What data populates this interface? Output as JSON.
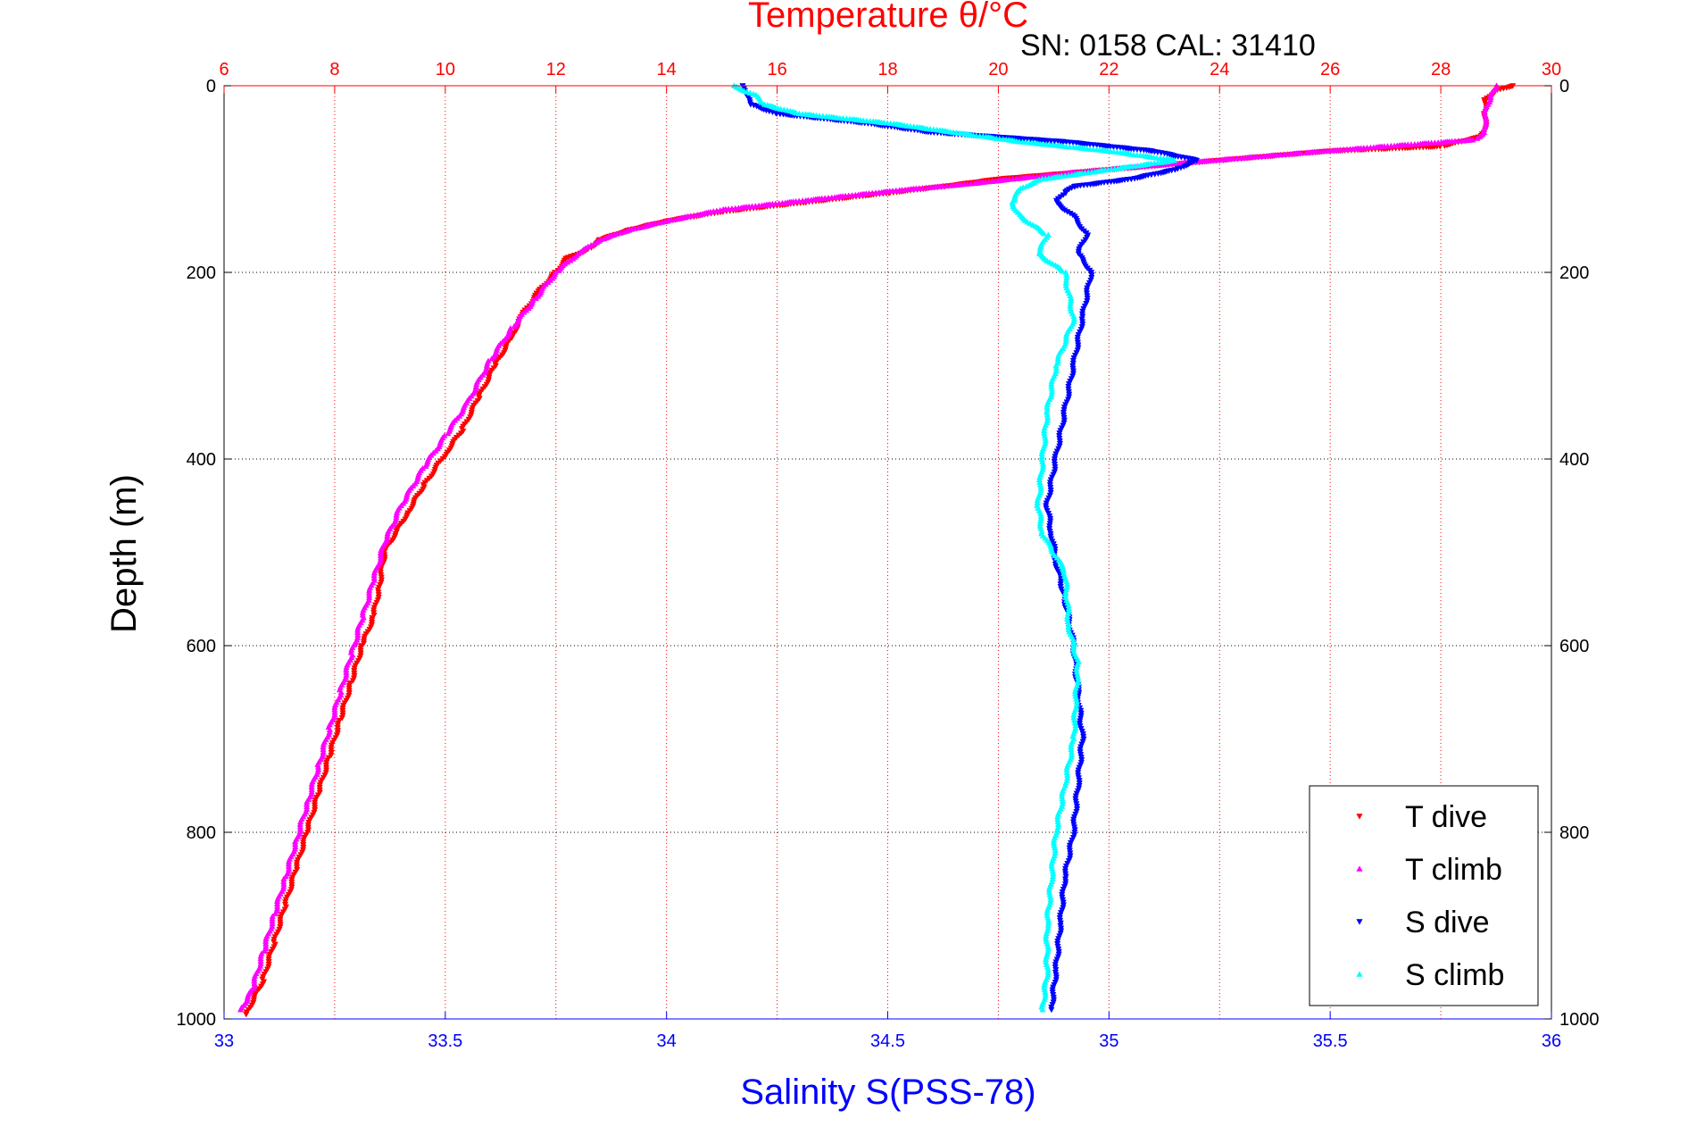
{
  "chart_data": {
    "type": "scatter",
    "title": "Temperature θ/°C",
    "annotation": "SN: 0158  CAL: 31410",
    "xlabel_top": "Temperature θ/°C",
    "xlabel_bottom": "Salinity S(PSS-78)",
    "ylabel": "Depth (m)",
    "temp_axis": {
      "range": [
        6,
        30
      ],
      "ticks": [
        "6",
        "8",
        "10",
        "12",
        "14",
        "16",
        "18",
        "20",
        "22",
        "24",
        "26",
        "28",
        "30"
      ],
      "color": "#ff0000"
    },
    "sal_axis": {
      "range": [
        33,
        36
      ],
      "ticks": [
        "33",
        "33.5",
        "34",
        "34.5",
        "35",
        "35.5",
        "36"
      ],
      "color": "#0000ff"
    },
    "depth_axis": {
      "range": [
        0,
        1000
      ],
      "reversed": true,
      "ticks": [
        "0",
        "200",
        "400",
        "600",
        "800",
        "1000"
      ]
    },
    "grid": {
      "vertical": "red dotted at temperature ticks",
      "horizontal": "black dotted at depth ticks"
    },
    "legend_position": "bottom-right",
    "series": [
      {
        "name": "T dive",
        "axis": "temperature",
        "marker": "triangle-down",
        "color": "#ff0000",
        "points": [
          [
            29.3,
            0
          ],
          [
            29.0,
            5
          ],
          [
            28.8,
            15
          ],
          [
            28.8,
            30
          ],
          [
            28.8,
            50
          ],
          [
            28.7,
            55
          ],
          [
            28.0,
            65
          ],
          [
            26.0,
            70
          ],
          [
            24.0,
            80
          ],
          [
            22.0,
            90
          ],
          [
            20.0,
            100
          ],
          [
            19.0,
            108
          ],
          [
            18.0,
            115
          ],
          [
            16.5,
            125
          ],
          [
            15.0,
            135
          ],
          [
            14.0,
            145
          ],
          [
            13.3,
            155
          ],
          [
            12.8,
            165
          ],
          [
            12.6,
            175
          ],
          [
            12.2,
            185
          ],
          [
            12.0,
            200
          ],
          [
            11.7,
            220
          ],
          [
            11.4,
            245
          ],
          [
            11.2,
            270
          ],
          [
            10.9,
            300
          ],
          [
            10.6,
            335
          ],
          [
            10.3,
            370
          ],
          [
            10.0,
            395
          ],
          [
            9.6,
            430
          ],
          [
            9.3,
            460
          ],
          [
            9.1,
            480
          ],
          [
            8.9,
            500
          ],
          [
            8.8,
            540
          ],
          [
            8.7,
            570
          ],
          [
            8.5,
            600
          ],
          [
            8.3,
            640
          ],
          [
            8.1,
            680
          ],
          [
            7.9,
            720
          ],
          [
            7.7,
            760
          ],
          [
            7.5,
            800
          ],
          [
            7.3,
            840
          ],
          [
            7.1,
            880
          ],
          [
            6.9,
            920
          ],
          [
            6.7,
            960
          ],
          [
            6.4,
            995
          ]
        ]
      },
      {
        "name": "T climb",
        "axis": "temperature",
        "marker": "triangle-up",
        "color": "#ff00ff",
        "points": [
          [
            29.0,
            0
          ],
          [
            28.9,
            10
          ],
          [
            28.8,
            30
          ],
          [
            28.8,
            50
          ],
          [
            28.6,
            58
          ],
          [
            27.0,
            65
          ],
          [
            25.5,
            72
          ],
          [
            23.5,
            82
          ],
          [
            21.5,
            92
          ],
          [
            19.5,
            105
          ],
          [
            18.2,
            112
          ],
          [
            16.5,
            123
          ],
          [
            15.0,
            133
          ],
          [
            14.0,
            145
          ],
          [
            13.3,
            155
          ],
          [
            12.8,
            165
          ],
          [
            12.4,
            180
          ],
          [
            12.0,
            200
          ],
          [
            11.6,
            230
          ],
          [
            11.2,
            260
          ],
          [
            10.8,
            295
          ],
          [
            10.4,
            340
          ],
          [
            10.0,
            375
          ],
          [
            9.6,
            410
          ],
          [
            9.2,
            450
          ],
          [
            8.9,
            490
          ],
          [
            8.7,
            530
          ],
          [
            8.5,
            570
          ],
          [
            8.3,
            610
          ],
          [
            8.1,
            650
          ],
          [
            7.9,
            690
          ],
          [
            7.7,
            730
          ],
          [
            7.5,
            770
          ],
          [
            7.3,
            810
          ],
          [
            7.1,
            850
          ],
          [
            6.9,
            890
          ],
          [
            6.7,
            930
          ],
          [
            6.5,
            970
          ],
          [
            6.3,
            990
          ]
        ]
      },
      {
        "name": "S dive",
        "axis": "salinity",
        "marker": "triangle-down",
        "color": "#0000ff",
        "points": [
          [
            34.17,
            0
          ],
          [
            34.18,
            10
          ],
          [
            34.19,
            20
          ],
          [
            34.25,
            30
          ],
          [
            34.45,
            40
          ],
          [
            34.6,
            50
          ],
          [
            34.9,
            60
          ],
          [
            35.1,
            70
          ],
          [
            35.2,
            80
          ],
          [
            35.15,
            90
          ],
          [
            35.05,
            100
          ],
          [
            34.92,
            108
          ],
          [
            34.9,
            115
          ],
          [
            34.88,
            125
          ],
          [
            34.92,
            140
          ],
          [
            34.95,
            160
          ],
          [
            34.93,
            180
          ],
          [
            34.96,
            200
          ],
          [
            34.94,
            250
          ],
          [
            34.92,
            300
          ],
          [
            34.9,
            350
          ],
          [
            34.88,
            400
          ],
          [
            34.86,
            450
          ],
          [
            34.87,
            480
          ],
          [
            34.88,
            510
          ],
          [
            34.9,
            550
          ],
          [
            34.92,
            600
          ],
          [
            34.93,
            650
          ],
          [
            34.94,
            700
          ],
          [
            34.93,
            750
          ],
          [
            34.92,
            800
          ],
          [
            34.9,
            850
          ],
          [
            34.89,
            900
          ],
          [
            34.88,
            950
          ],
          [
            34.87,
            990
          ]
        ]
      },
      {
        "name": "S climb",
        "axis": "salinity",
        "marker": "triangle-up",
        "color": "#00ffff",
        "points": [
          [
            34.15,
            0
          ],
          [
            34.2,
            10
          ],
          [
            34.22,
            20
          ],
          [
            34.3,
            30
          ],
          [
            34.5,
            40
          ],
          [
            34.65,
            50
          ],
          [
            34.8,
            60
          ],
          [
            35.0,
            70
          ],
          [
            35.15,
            80
          ],
          [
            35.0,
            90
          ],
          [
            34.85,
            100
          ],
          [
            34.8,
            110
          ],
          [
            34.78,
            125
          ],
          [
            34.8,
            140
          ],
          [
            34.86,
            160
          ],
          [
            34.84,
            180
          ],
          [
            34.9,
            200
          ],
          [
            34.92,
            250
          ],
          [
            34.88,
            300
          ],
          [
            34.86,
            350
          ],
          [
            34.85,
            400
          ],
          [
            34.84,
            450
          ],
          [
            34.85,
            480
          ],
          [
            34.9,
            520
          ],
          [
            34.91,
            580
          ],
          [
            34.93,
            620
          ],
          [
            34.92,
            700
          ],
          [
            34.9,
            750
          ],
          [
            34.88,
            800
          ],
          [
            34.87,
            850
          ],
          [
            34.86,
            900
          ],
          [
            34.86,
            950
          ],
          [
            34.85,
            990
          ]
        ]
      }
    ]
  }
}
